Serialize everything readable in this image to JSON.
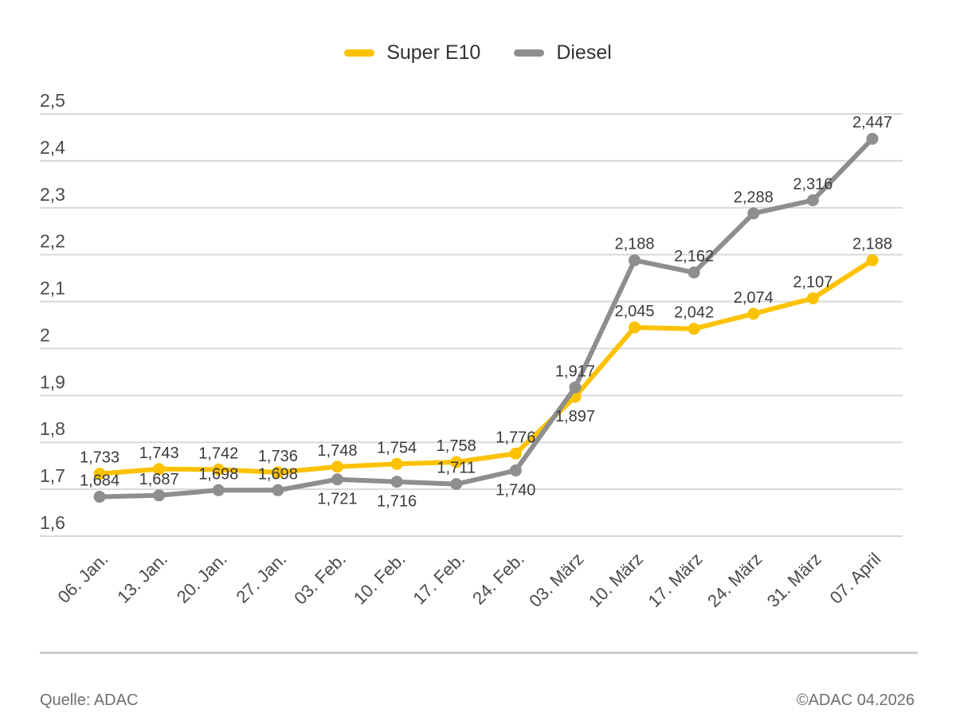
{
  "legend": {
    "items": [
      {
        "label": "Super E10",
        "color": "#FCC200"
      },
      {
        "label": "Diesel",
        "color": "#8E8E8E"
      }
    ]
  },
  "footer": {
    "source": "Quelle: ADAC",
    "copyright": "©ADAC 04.2026"
  },
  "chart_data": {
    "type": "line",
    "x": [
      "06. Jan.",
      "13. Jan.",
      "20. Jan.",
      "27. Jan.",
      "03. Feb.",
      "10. Feb.",
      "17. Feb.",
      "24. Feb.",
      "03. März",
      "10. März",
      "17. März",
      "24. März",
      "31. März",
      "07. April"
    ],
    "series": [
      {
        "name": "Super E10",
        "color": "#FCC200",
        "values": [
          1.733,
          1.743,
          1.742,
          1.736,
          1.748,
          1.754,
          1.758,
          1.776,
          1.897,
          2.045,
          2.042,
          2.074,
          2.107,
          2.188
        ],
        "label_positions": [
          "above",
          "above",
          "above",
          "above",
          "above",
          "above",
          "above",
          "above",
          "below",
          "above",
          "above",
          "above",
          "above",
          "above"
        ]
      },
      {
        "name": "Diesel",
        "color": "#8E8E8E",
        "values": [
          1.684,
          1.687,
          1.698,
          1.698,
          1.721,
          1.716,
          1.711,
          1.74,
          1.917,
          2.188,
          2.162,
          2.288,
          2.316,
          2.447
        ],
        "label_positions": [
          "above",
          "above",
          "above",
          "above",
          "below",
          "below",
          "above",
          "below",
          "above",
          "above",
          "above",
          "above",
          "above",
          "above"
        ]
      }
    ],
    "ylim": [
      1.6,
      2.5
    ],
    "ytick_step": 0.1,
    "grid": true,
    "legend_position": "top",
    "decimal_separator": ",",
    "value_label_color": "#3a3a3a",
    "axis_tick_color": "#4b4b4b",
    "grid_color": "#d8d8d8"
  }
}
